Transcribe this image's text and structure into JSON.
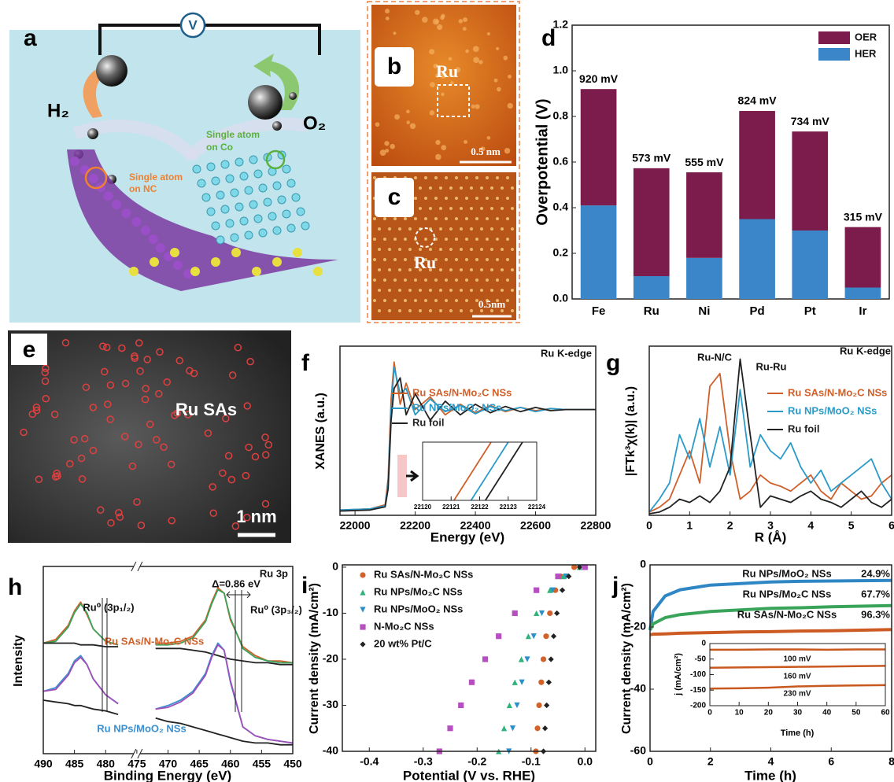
{
  "panels": {
    "a": {
      "letter": "a",
      "voltmeter": "V",
      "h2": "H₂",
      "o2": "O₂",
      "single_nc": [
        "Single atom",
        "on NC"
      ],
      "single_co": [
        "Single atom",
        "on Co"
      ]
    },
    "b": {
      "letter": "b",
      "label": "Ru",
      "scale": "0.5 nm"
    },
    "c": {
      "letter": "c",
      "label": "Ru",
      "scale": "0.5nm"
    },
    "e": {
      "letter": "e",
      "label": "Ru SAs",
      "scale": "1 nm"
    }
  },
  "chart_data": [
    {
      "type": "bar",
      "panel": "d",
      "ylabel": "Overpotential (V)",
      "categories": [
        "Fe",
        "Ru",
        "Ni",
        "Pd",
        "Pt",
        "Ir"
      ],
      "series": [
        {
          "name": "OER",
          "color": "#7b1c4c",
          "values": [
            0.51,
            0.473,
            0.375,
            0.474,
            0.434,
            0.265
          ]
        },
        {
          "name": "HER",
          "color": "#3b86c9",
          "values": [
            0.41,
            0.1,
            0.18,
            0.35,
            0.3,
            0.05
          ]
        }
      ],
      "annotations": [
        "920 mV",
        "573 mV",
        "555 mV",
        "824 mV",
        "734 mV",
        "315 mV"
      ],
      "ylim": [
        0,
        1.2
      ],
      "yticks": [
        {
          "value": 0,
          "label": "0.0"
        },
        0.2,
        0.4,
        0.6,
        0.8,
        {
          "value": 1,
          "label": "1.0"
        },
        1.2
      ]
    },
    {
      "type": "line",
      "panel": "f",
      "xlabel": "Energy (eV)",
      "ylabel": "XANES (a.u.)",
      "annotations": [
        "Ru K-edge"
      ],
      "x": [
        21950,
        22050,
        22100,
        22110,
        22120,
        22130,
        22150,
        22170,
        22200,
        22250,
        22300,
        22350,
        22400,
        22450,
        22500,
        22550,
        22600,
        22650,
        22700,
        22750,
        22800
      ],
      "series": [
        {
          "name": "Ru SAs/N-Mo₂C NSs",
          "color": "#d0602a",
          "values": [
            0.05,
            0.06,
            0.1,
            0.35,
            1.1,
            1.45,
            1.05,
            1.25,
            1.0,
            1.12,
            0.95,
            1.05,
            0.97,
            1.04,
            0.98,
            1.02,
            0.99,
            1.01,
            1.0,
            1.0,
            1.0
          ]
        },
        {
          "name": "Ru NPs/MoO₂ NSs",
          "color": "#2a9ac8",
          "values": [
            0.05,
            0.06,
            0.09,
            0.3,
            1.0,
            1.4,
            1.15,
            1.2,
            0.95,
            1.1,
            0.98,
            1.04,
            0.96,
            1.03,
            0.99,
            1.02,
            0.98,
            1.01,
            1.0,
            1.0,
            1.0
          ]
        },
        {
          "name": "Ru foil",
          "color": "#222222",
          "values": [
            0.04,
            0.05,
            0.08,
            0.25,
            0.9,
            1.2,
            1.3,
            0.95,
            1.15,
            0.9,
            1.08,
            0.95,
            1.05,
            0.97,
            1.03,
            0.98,
            1.02,
            0.99,
            1.0,
            1.0,
            1.0
          ]
        }
      ],
      "xlim": [
        21950,
        22800
      ],
      "xticks": [
        22000,
        22200,
        22400,
        22600,
        22800
      ],
      "ylim": [
        0,
        1.6
      ]
    },
    {
      "type": "line",
      "series": [
        {
          "color": "#d0602a",
          "x": [
            22121.1,
            22122.4
          ],
          "values": [
            0,
            1
          ]
        },
        {
          "color": "#2a9ac8",
          "x": [
            22121.7,
            22123.0
          ],
          "values": [
            0,
            1
          ]
        },
        {
          "color": "#222222",
          "x": [
            22122.2,
            22123.5
          ],
          "values": [
            0,
            1
          ]
        }
      ],
      "xlim": [
        22120,
        22124
      ],
      "xticks": [
        22120,
        22121,
        22122,
        22123,
        22124
      ],
      "ylim": [
        0,
        1
      ]
    },
    {
      "type": "line",
      "panel": "g",
      "xlabel": "R (Å)",
      "ylabel": "|FTk³χ(k)| (a.u.)",
      "annotations": [
        "Ru K-edge",
        "Ru-N/C",
        "Ru-Ru"
      ],
      "x": [
        0,
        0.25,
        0.5,
        0.75,
        1,
        1.25,
        1.5,
        1.75,
        2,
        2.25,
        2.5,
        2.75,
        3,
        3.25,
        3.5,
        3.75,
        4,
        4.25,
        4.5,
        4.75,
        5,
        5.25,
        5.5,
        5.75,
        6
      ],
      "series": [
        {
          "name": "Ru SAs/N-Mo₂C NSs",
          "color": "#d0602a",
          "values": [
            0.02,
            0.05,
            0.1,
            0.25,
            0.4,
            0.2,
            0.8,
            0.88,
            0.4,
            0.1,
            0.15,
            0.25,
            0.2,
            0.18,
            0.15,
            0.2,
            0.25,
            0.15,
            0.1,
            0.2,
            0.15,
            0.1,
            0.12,
            0.2,
            0.25
          ]
        },
        {
          "name": "Ru NPs/MoO₂ NSs",
          "color": "#2a9ac8",
          "values": [
            0.02,
            0.1,
            0.2,
            0.5,
            0.35,
            0.6,
            0.3,
            0.55,
            0.25,
            0.78,
            0.3,
            0.5,
            0.4,
            0.35,
            0.45,
            0.3,
            0.2,
            0.28,
            0.15,
            0.2,
            0.25,
            0.3,
            0.35,
            0.2,
            0.1
          ]
        },
        {
          "name": "Ru foil",
          "color": "#222222",
          "values": [
            0.01,
            0.02,
            0.05,
            0.1,
            0.08,
            0.12,
            0.08,
            0.15,
            0.3,
            0.97,
            0.5,
            0.05,
            0.12,
            0.1,
            0.08,
            0.12,
            0.15,
            0.1,
            0.08,
            0.05,
            0.1,
            0.15,
            0.08,
            0.05,
            0.1
          ]
        }
      ],
      "xlim": [
        0,
        6
      ],
      "xticks": [
        0,
        1,
        2,
        3,
        4,
        5,
        6
      ],
      "ylim": [
        0,
        1.05
      ]
    },
    {
      "type": "line",
      "panel": "h",
      "xlabel": "Binding Energy (eV)",
      "ylabel": "Intensity",
      "annotations": [
        "Ru 3p",
        "Ru⁰ (3p₁/₂)",
        "Δ=0.86 eV",
        "Ru⁰ (3p₃/₂)",
        "Ru SAs/N-Mo₂C NSs",
        "Ru NPs/MoO₂ NSs"
      ],
      "x": [
        490,
        488,
        486,
        485,
        484,
        483,
        482,
        480,
        478,
        475,
        472,
        470,
        468,
        466,
        464,
        463,
        462,
        461,
        460,
        458,
        456,
        454,
        452,
        450
      ],
      "series": [
        {
          "color": "#d0602a",
          "values": [
            0.62,
            0.64,
            0.72,
            0.8,
            0.85,
            0.78,
            0.7,
            0.63,
            0.61,
            null,
            0.62,
            0.62,
            0.63,
            0.66,
            0.75,
            0.85,
            0.93,
            0.9,
            0.75,
            0.6,
            0.55,
            0.52,
            0.52,
            0.51
          ]
        },
        {
          "color": "#3aa35a",
          "values": [
            0.62,
            0.63,
            0.71,
            0.79,
            0.84,
            0.79,
            0.7,
            0.63,
            0.61,
            null,
            0.61,
            0.61,
            0.62,
            0.65,
            0.74,
            0.84,
            0.92,
            0.9,
            0.76,
            0.59,
            0.54,
            0.52,
            0.51,
            0.51
          ]
        },
        {
          "color": "#222222",
          "values": [
            0.62,
            0.62,
            0.62,
            0.62,
            0.61,
            0.61,
            0.61,
            0.6,
            0.6,
            null,
            0.59,
            0.59,
            0.59,
            0.58,
            0.57,
            0.56,
            0.55,
            0.54,
            0.53,
            0.52,
            0.51,
            0.51,
            0.5,
            0.5
          ]
        },
        {
          "color": "#3a8fd0",
          "values": [
            0.35,
            0.37,
            0.45,
            0.52,
            0.55,
            0.5,
            0.42,
            0.33,
            0.28,
            null,
            0.25,
            0.27,
            0.3,
            0.35,
            0.45,
            0.55,
            0.62,
            0.58,
            0.4,
            0.15,
            0.1,
            0.08,
            0.07,
            0.06
          ]
        },
        {
          "color": "#a04fb8",
          "values": [
            0.35,
            0.36,
            0.44,
            0.51,
            0.54,
            0.5,
            0.42,
            0.33,
            0.28,
            null,
            0.25,
            0.26,
            0.29,
            0.34,
            0.44,
            0.54,
            0.61,
            0.58,
            0.41,
            0.15,
            0.1,
            0.08,
            0.07,
            0.06
          ]
        },
        {
          "color": "#222222",
          "values": [
            0.3,
            0.29,
            0.28,
            0.27,
            0.27,
            0.26,
            0.25,
            0.24,
            0.22,
            null,
            0.2,
            0.18,
            0.17,
            0.15,
            0.13,
            0.12,
            0.11,
            0.1,
            0.09,
            0.07,
            0.06,
            0.06,
            0.05,
            0.05
          ]
        }
      ],
      "xlim": [
        490,
        450
      ],
      "xticks": [
        490,
        485,
        480,
        475,
        470,
        465,
        460,
        455,
        450
      ],
      "ylim": [
        0,
        1.05
      ]
    },
    {
      "type": "line",
      "panel": "i",
      "xlabel": "Potential (V vs. RHE)",
      "ylabel": "Current density (mA/cm²)",
      "series": [
        {
          "name": "Ru SAs/N-Mo₂C NSs",
          "color": "#d2622a",
          "marker": "circle",
          "x": [
            -0.02,
            -0.045,
            -0.055,
            -0.065,
            -0.072,
            -0.077,
            -0.081,
            -0.085,
            -0.088,
            -0.091
          ],
          "values": [
            0,
            -2,
            -5,
            -10,
            -15,
            -20,
            -25,
            -30,
            -35,
            -40
          ]
        },
        {
          "name": "Ru NPs/Mo₂C NSs",
          "color": "#2fb37c",
          "marker": "triangle-up",
          "x": [
            -0.01,
            -0.04,
            -0.065,
            -0.09,
            -0.105,
            -0.118,
            -0.13,
            -0.14,
            -0.15,
            -0.16
          ],
          "values": [
            0,
            -2,
            -5,
            -10,
            -15,
            -20,
            -25,
            -30,
            -35,
            -40
          ]
        },
        {
          "name": "Ru NPs/MoO₂ NSs",
          "color": "#2b8fc9",
          "marker": "triangle-down",
          "x": [
            -0.01,
            -0.035,
            -0.06,
            -0.08,
            -0.095,
            -0.107,
            -0.117,
            -0.126,
            -0.134,
            -0.141
          ],
          "values": [
            0,
            -2,
            -5,
            -10,
            -15,
            -20,
            -25,
            -30,
            -35,
            -40
          ]
        },
        {
          "name": "N-Mo₂C NSs",
          "color": "#b84fc0",
          "marker": "square",
          "x": [
            0.0,
            -0.05,
            -0.09,
            -0.13,
            -0.16,
            -0.185,
            -0.21,
            -0.23,
            -0.25,
            -0.27
          ],
          "values": [
            0,
            -2,
            -5,
            -10,
            -15,
            -20,
            -25,
            -30,
            -35,
            -40
          ]
        },
        {
          "name": "20 wt% Pt/C",
          "color": "#222222",
          "marker": "diamond",
          "x": [
            -0.01,
            -0.03,
            -0.042,
            -0.052,
            -0.058,
            -0.063,
            -0.067,
            -0.071,
            -0.074,
            -0.077
          ],
          "values": [
            0,
            -2,
            -5,
            -10,
            -15,
            -20,
            -25,
            -30,
            -35,
            -40
          ]
        }
      ],
      "xlim": [
        -0.45,
        0.02
      ],
      "xticks": [
        -0.4,
        -0.3,
        -0.2,
        -0.1,
        {
          "value": 0,
          "label": "0.0"
        }
      ],
      "ylim": [
        -40,
        0.5
      ],
      "yticks": [
        0,
        -10,
        -20,
        -30,
        -40
      ]
    },
    {
      "type": "line",
      "panel": "j",
      "xlabel": "Time (h)",
      "ylabel": "Current density (mA/cm²)",
      "annotations": [
        "24.9%",
        "67.7%",
        "96.3%"
      ],
      "x": [
        0,
        0.1,
        0.5,
        1,
        2,
        3,
        4,
        5,
        6,
        7,
        8
      ],
      "series": [
        {
          "name": "Ru NPs/MoO₂ NSs",
          "color": "#2f86c4",
          "values": [
            -21,
            -15,
            -10,
            -8,
            -6.5,
            -6,
            -5.5,
            -5.3,
            -5.2,
            -5.1,
            -5
          ]
        },
        {
          "name": "Ru NPs/Mo₂C NSs",
          "color": "#3aa35a",
          "values": [
            -21,
            -19,
            -17,
            -16,
            -15,
            -14.5,
            -14,
            -13.8,
            -13.5,
            -13.3,
            -13.1
          ]
        },
        {
          "name": "Ru SAs/N-Mo₂C NSs",
          "color": "#cc5a22",
          "values": [
            -22.5,
            -22.3,
            -22.2,
            -22,
            -21.8,
            -21.6,
            -21.5,
            -21.3,
            -21.2,
            -21,
            -20.8
          ]
        }
      ],
      "xlim": [
        0,
        8
      ],
      "xticks": [
        0,
        2,
        4,
        6,
        8
      ],
      "ylim": [
        -60,
        0
      ],
      "yticks": [
        0,
        -20,
        -40,
        -60
      ]
    },
    {
      "type": "line",
      "xlabel": "Time (h)",
      "ylabel": "j (mA/cm²)",
      "annotations": [
        "100 mV",
        "160 mV",
        "230 mV"
      ],
      "x": [
        0,
        10,
        20,
        30,
        40,
        50,
        60
      ],
      "series": [
        {
          "color": "#c8581e",
          "values": [
            -20,
            -20,
            -19,
            -19,
            -20,
            -19,
            -19
          ]
        },
        {
          "color": "#c8581e",
          "values": [
            -78,
            -77,
            -76,
            -75,
            -74,
            -73,
            -72
          ]
        },
        {
          "color": "#c8581e",
          "values": [
            -145,
            -144,
            -142,
            -138,
            -136,
            -135,
            -134
          ]
        }
      ],
      "xlim": [
        0,
        60
      ],
      "xticks": [
        0,
        10,
        20,
        30,
        40,
        50,
        60
      ],
      "ylim": [
        -200,
        0
      ],
      "yticks": [
        0,
        -50,
        -100,
        -150,
        -200
      ]
    }
  ]
}
